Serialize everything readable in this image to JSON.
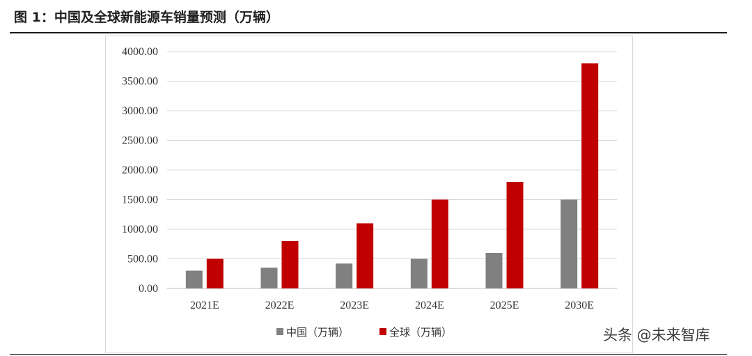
{
  "figure": {
    "title": "图 1：中国及全球新能源车销量预测（万辆）"
  },
  "watermark": "头条 @未来智库",
  "colors": {
    "china": "#808080",
    "global": "#c00000",
    "grid": "#d9d9d9",
    "axis": "#bfbfbf"
  },
  "chart_data": {
    "type": "bar",
    "title": "",
    "xlabel": "",
    "ylabel": "",
    "categories": [
      "2021E",
      "2022E",
      "2023E",
      "2024E",
      "2025E",
      "2030E"
    ],
    "series": [
      {
        "name": "中国（万辆）",
        "values": [
          300,
          350,
          420,
          500,
          600,
          1500
        ]
      },
      {
        "name": "全球（万辆）",
        "values": [
          500,
          800,
          1100,
          1500,
          1800,
          3800
        ]
      }
    ],
    "ylim": [
      0,
      4000
    ],
    "yticks": [
      "0.00",
      "500.00",
      "1000.00",
      "1500.00",
      "2000.00",
      "2500.00",
      "3000.00",
      "3500.00",
      "4000.00"
    ],
    "grid": true,
    "legend": "bottom-center"
  }
}
